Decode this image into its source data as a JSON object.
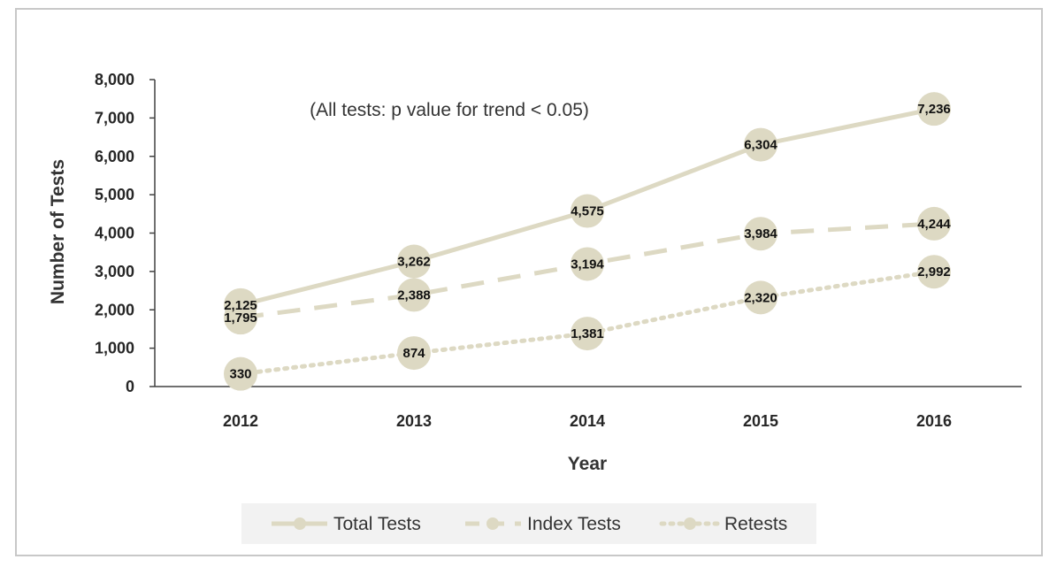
{
  "chart_data": {
    "type": "line",
    "title": "",
    "annotation": "(All tests: p value for trend < 0.05)",
    "xlabel": "Year",
    "ylabel": "Number of Tests",
    "categories": [
      "2012",
      "2013",
      "2014",
      "2015",
      "2016"
    ],
    "ylim": [
      0,
      8000
    ],
    "yticks": [
      0,
      1000,
      2000,
      3000,
      4000,
      5000,
      6000,
      7000,
      8000
    ],
    "ytick_labels": [
      "0",
      "1,000",
      "2,000",
      "3,000",
      "4,000",
      "5,000",
      "6,000",
      "7,000",
      "8,000"
    ],
    "grid": false,
    "legend_position": "bottom",
    "marker_color": "#ddd9c3",
    "line_color": "#ddd9c3",
    "series": [
      {
        "name": "Total Tests",
        "line_style": "solid",
        "values": [
          2125,
          3262,
          4575,
          6304,
          7236
        ],
        "labels": [
          "2,125",
          "3,262",
          "4,575",
          "6,304",
          "7,236"
        ]
      },
      {
        "name": "Index Tests",
        "line_style": "dashed",
        "values": [
          1795,
          2388,
          3194,
          3984,
          4244
        ],
        "labels": [
          "1,795",
          "2,388",
          "3,194",
          "3,984",
          "4,244"
        ]
      },
      {
        "name": "Retests",
        "line_style": "dotted",
        "values": [
          330,
          874,
          1381,
          2320,
          2992
        ],
        "labels": [
          "330",
          "874",
          "1,381",
          "2,320",
          "2,992"
        ]
      }
    ]
  }
}
